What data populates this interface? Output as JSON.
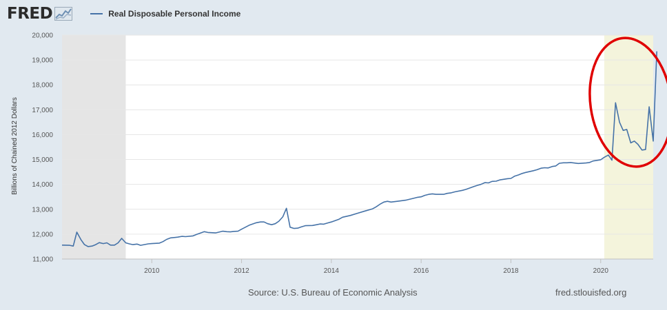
{
  "header": {
    "logo_text": "FRED",
    "logo_icon": "line-chart-icon",
    "legend_label": "Real Disposable Personal Income"
  },
  "footer": {
    "source": "Source: U.S. Bureau of Economic Analysis",
    "site": "fred.stlouisfed.org"
  },
  "colors": {
    "page_background": "#e1e9f0",
    "plot_background": "#ffffff",
    "series_line": "#4572a7",
    "recession_shade": "#e5e5e5",
    "highlight_shade": "#f4f4dc",
    "annotation_circle": "#e00000"
  },
  "chart_data": {
    "type": "line",
    "title": "",
    "xlabel": "",
    "ylabel": "Billions of Chained 2012 Dollars",
    "xlim": [
      2008.0,
      2021.17
    ],
    "ylim": [
      11000,
      20000
    ],
    "x_ticks": [
      2010,
      2012,
      2014,
      2016,
      2018,
      2020
    ],
    "x_tick_labels": [
      "2010",
      "2012",
      "2014",
      "2016",
      "2018",
      "2020"
    ],
    "y_ticks": [
      11000,
      12000,
      13000,
      14000,
      15000,
      16000,
      17000,
      18000,
      19000,
      20000
    ],
    "y_tick_labels": [
      "11,000",
      "12,000",
      "13,000",
      "14,000",
      "15,000",
      "16,000",
      "17,000",
      "18,000",
      "19,000",
      "20,000"
    ],
    "grid": "horizontal",
    "legend": "top-left",
    "shaded_regions": [
      {
        "x0": 2008.0,
        "x1": 2009.42,
        "kind": "recession"
      },
      {
        "x0": 2020.08,
        "x1": 2021.17,
        "kind": "highlight"
      }
    ],
    "annotation": {
      "shape": "ellipse",
      "cx": 2020.67,
      "cy": 17300,
      "rx": 0.9,
      "ry": 2600
    },
    "series": [
      {
        "points": [
          [
            2008.0,
            11560
          ],
          [
            2008.17,
            11550
          ],
          [
            2008.25,
            11520
          ],
          [
            2008.33,
            12080
          ],
          [
            2008.42,
            11780
          ],
          [
            2008.5,
            11580
          ],
          [
            2008.58,
            11500
          ],
          [
            2008.67,
            11520
          ],
          [
            2008.75,
            11580
          ],
          [
            2008.83,
            11660
          ],
          [
            2008.92,
            11620
          ],
          [
            2009.0,
            11650
          ],
          [
            2009.08,
            11560
          ],
          [
            2009.17,
            11560
          ],
          [
            2009.25,
            11650
          ],
          [
            2009.33,
            11830
          ],
          [
            2009.42,
            11650
          ],
          [
            2009.5,
            11610
          ],
          [
            2009.58,
            11580
          ],
          [
            2009.67,
            11600
          ],
          [
            2009.75,
            11550
          ],
          [
            2009.83,
            11580
          ],
          [
            2009.92,
            11610
          ],
          [
            2010.0,
            11620
          ],
          [
            2010.17,
            11640
          ],
          [
            2010.25,
            11700
          ],
          [
            2010.33,
            11790
          ],
          [
            2010.42,
            11850
          ],
          [
            2010.58,
            11880
          ],
          [
            2010.67,
            11910
          ],
          [
            2010.75,
            11900
          ],
          [
            2010.92,
            11930
          ],
          [
            2011.0,
            11990
          ],
          [
            2011.08,
            12040
          ],
          [
            2011.17,
            12100
          ],
          [
            2011.25,
            12070
          ],
          [
            2011.42,
            12050
          ],
          [
            2011.58,
            12120
          ],
          [
            2011.67,
            12100
          ],
          [
            2011.75,
            12090
          ],
          [
            2011.83,
            12110
          ],
          [
            2011.92,
            12120
          ],
          [
            2012.0,
            12200
          ],
          [
            2012.17,
            12360
          ],
          [
            2012.33,
            12460
          ],
          [
            2012.42,
            12490
          ],
          [
            2012.5,
            12490
          ],
          [
            2012.58,
            12420
          ],
          [
            2012.67,
            12380
          ],
          [
            2012.75,
            12420
          ],
          [
            2012.83,
            12520
          ],
          [
            2012.92,
            12700
          ],
          [
            2013.0,
            13040
          ],
          [
            2013.08,
            12280
          ],
          [
            2013.17,
            12230
          ],
          [
            2013.25,
            12240
          ],
          [
            2013.33,
            12290
          ],
          [
            2013.42,
            12340
          ],
          [
            2013.58,
            12350
          ],
          [
            2013.67,
            12380
          ],
          [
            2013.75,
            12410
          ],
          [
            2013.83,
            12400
          ],
          [
            2013.92,
            12450
          ],
          [
            2014.0,
            12490
          ],
          [
            2014.17,
            12600
          ],
          [
            2014.25,
            12680
          ],
          [
            2014.42,
            12750
          ],
          [
            2014.58,
            12840
          ],
          [
            2014.75,
            12930
          ],
          [
            2014.92,
            13020
          ],
          [
            2015.0,
            13100
          ],
          [
            2015.08,
            13200
          ],
          [
            2015.17,
            13290
          ],
          [
            2015.25,
            13320
          ],
          [
            2015.33,
            13290
          ],
          [
            2015.5,
            13330
          ],
          [
            2015.67,
            13370
          ],
          [
            2015.83,
            13440
          ],
          [
            2015.92,
            13480
          ],
          [
            2016.0,
            13500
          ],
          [
            2016.08,
            13560
          ],
          [
            2016.17,
            13600
          ],
          [
            2016.25,
            13620
          ],
          [
            2016.33,
            13600
          ],
          [
            2016.5,
            13600
          ],
          [
            2016.58,
            13640
          ],
          [
            2016.67,
            13660
          ],
          [
            2016.75,
            13700
          ],
          [
            2016.92,
            13760
          ],
          [
            2017.0,
            13800
          ],
          [
            2017.17,
            13910
          ],
          [
            2017.25,
            13960
          ],
          [
            2017.33,
            14000
          ],
          [
            2017.42,
            14070
          ],
          [
            2017.5,
            14060
          ],
          [
            2017.58,
            14120
          ],
          [
            2017.67,
            14130
          ],
          [
            2017.75,
            14180
          ],
          [
            2017.92,
            14230
          ],
          [
            2018.0,
            14240
          ],
          [
            2018.08,
            14330
          ],
          [
            2018.17,
            14380
          ],
          [
            2018.25,
            14440
          ],
          [
            2018.33,
            14480
          ],
          [
            2018.5,
            14550
          ],
          [
            2018.58,
            14590
          ],
          [
            2018.67,
            14650
          ],
          [
            2018.75,
            14670
          ],
          [
            2018.83,
            14660
          ],
          [
            2018.92,
            14720
          ],
          [
            2019.0,
            14740
          ],
          [
            2019.08,
            14850
          ],
          [
            2019.17,
            14870
          ],
          [
            2019.25,
            14870
          ],
          [
            2019.33,
            14880
          ],
          [
            2019.5,
            14840
          ],
          [
            2019.67,
            14860
          ],
          [
            2019.75,
            14880
          ],
          [
            2019.83,
            14940
          ],
          [
            2020.0,
            14990
          ],
          [
            2020.08,
            15090
          ],
          [
            2020.17,
            15180
          ],
          [
            2020.25,
            14970
          ],
          [
            2020.33,
            17280
          ],
          [
            2020.42,
            16500
          ],
          [
            2020.5,
            16170
          ],
          [
            2020.58,
            16210
          ],
          [
            2020.67,
            15670
          ],
          [
            2020.75,
            15740
          ],
          [
            2020.83,
            15610
          ],
          [
            2020.92,
            15380
          ],
          [
            2021.0,
            15400
          ],
          [
            2021.08,
            17120
          ],
          [
            2021.17,
            15740
          ],
          [
            2021.25,
            19350
          ]
        ]
      }
    ]
  }
}
